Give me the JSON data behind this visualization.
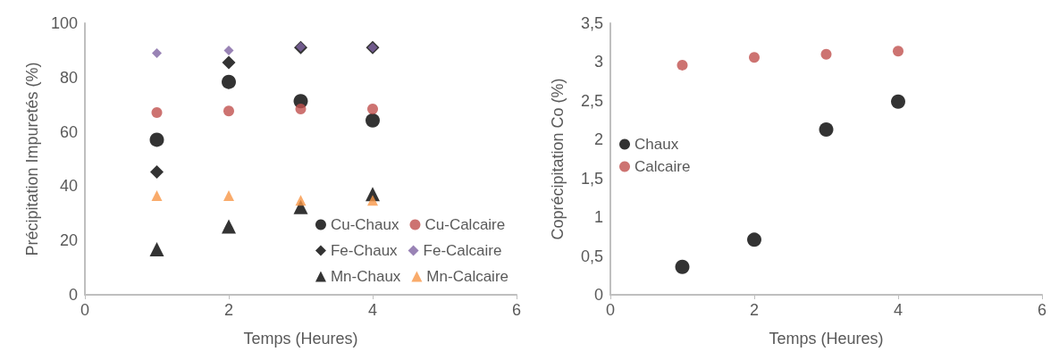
{
  "chart_data": [
    {
      "type": "scatter",
      "xlabel": "Temps (Heures)",
      "ylabel": "Précipitation Impuretés (%)",
      "x": [
        1,
        2,
        3,
        4
      ],
      "xlim": [
        0,
        6
      ],
      "xticks": [
        0,
        2,
        4,
        6
      ],
      "ylim": [
        0,
        100
      ],
      "yticks": [
        0,
        20,
        40,
        60,
        80,
        100
      ],
      "grid": false,
      "legend": "bottom right",
      "series": [
        {
          "name": "Cu-Chaux",
          "color": "#000000",
          "marker": "circle",
          "values": [
            57.1,
            78.4,
            71.3,
            64.2
          ]
        },
        {
          "name": "Cu-Calcaire",
          "color": "#c0504d",
          "marker": "circle",
          "values": [
            67.1,
            67.7,
            68.4,
            68.4
          ]
        },
        {
          "name": "Fe-Chaux",
          "color": "#000000",
          "marker": "diamond",
          "values": [
            45.2,
            85.5,
            91,
            91
          ]
        },
        {
          "name": "Fe-Calcaire",
          "color": "#8064a2",
          "marker": "diamond",
          "values": [
            89,
            90,
            91.3,
            91
          ]
        },
        {
          "name": "Mn-Chaux",
          "color": "#000000",
          "marker": "triangle",
          "values": [
            16.8,
            25.2,
            32.3,
            37.1
          ]
        },
        {
          "name": "Mn-Calcaire",
          "color": "#f79646",
          "marker": "triangle",
          "values": [
            36.5,
            36.5,
            34.8,
            34.8
          ]
        }
      ]
    },
    {
      "type": "scatter",
      "xlabel": "Temps (Heures)",
      "ylabel": "Coprécipitation Co (%)",
      "x": [
        1,
        2,
        3,
        4
      ],
      "xlim": [
        0,
        6
      ],
      "xticks": [
        0,
        2,
        4,
        6
      ],
      "ylim": [
        0,
        3.5
      ],
      "yticks": [
        {
          "value": 0,
          "label": "0"
        },
        {
          "value": 0.5,
          "label": "0,5"
        },
        {
          "value": 1,
          "label": "1"
        },
        {
          "value": 1.5,
          "label": "1,5"
        },
        {
          "value": 2,
          "label": "2"
        },
        {
          "value": 2.5,
          "label": "2,5"
        },
        {
          "value": 3,
          "label": "3"
        },
        {
          "value": 3.5,
          "label": "3,5"
        }
      ],
      "grid": false,
      "legend": "left",
      "series": [
        {
          "name": "Chaux",
          "color": "#000000",
          "marker": "circle",
          "values": [
            0.36,
            0.71,
            2.13,
            2.49
          ]
        },
        {
          "name": "Calcaire",
          "color": "#c0504d",
          "marker": "circle",
          "values": [
            2.96,
            3.06,
            3.1,
            3.14
          ]
        }
      ]
    }
  ]
}
